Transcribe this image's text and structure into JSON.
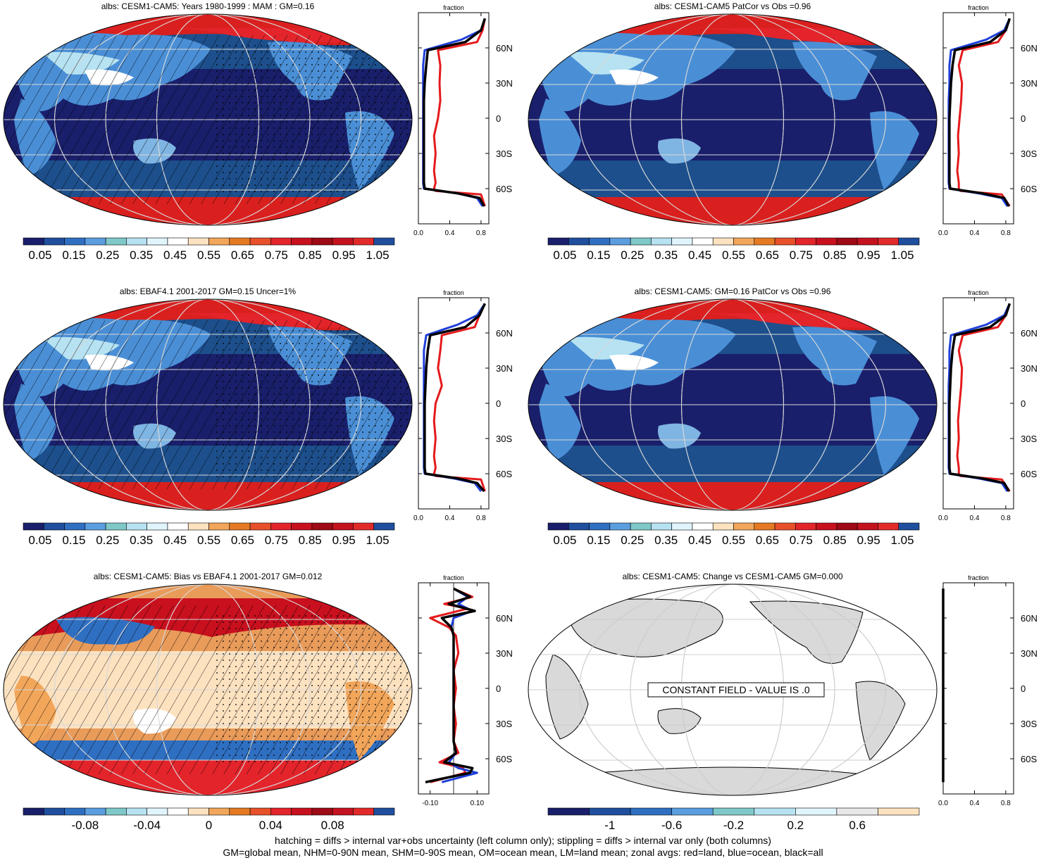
{
  "variable": "albs",
  "panels": [
    {
      "title": "albs: CESM1-CAM5: Years 1980-1999 : MAM : GM=0.16",
      "map_kind": "albedo",
      "colorbar_labels": [
        "0.05",
        "0.15",
        "0.25",
        "0.35",
        "0.45",
        "0.55",
        "0.65",
        "0.75",
        "0.85",
        "0.95",
        "1.05"
      ],
      "zonal_xlabel": "fraction",
      "zonal_xticks": [
        "0.0",
        "0.4",
        "0.8"
      ],
      "zonal_yticks": [
        "60N",
        "30N",
        "0",
        "30S",
        "60S"
      ],
      "hatching": true,
      "stippling": true
    },
    {
      "title": "albs: CESM1-CAM5 PatCor vs Obs =0.96",
      "map_kind": "albedo",
      "colorbar_labels": [
        "0.05",
        "0.15",
        "0.25",
        "0.35",
        "0.45",
        "0.55",
        "0.65",
        "0.75",
        "0.85",
        "0.95",
        "1.05"
      ],
      "zonal_xlabel": "fraction",
      "zonal_xticks": [
        "0.0",
        "0.4",
        "0.8"
      ],
      "zonal_yticks": [
        "60N",
        "30N",
        "0",
        "30S",
        "60S"
      ],
      "hatching": false,
      "stippling": false
    },
    {
      "title": "albs: EBAF4.1 2001-2017 GM=0.15 Uncer=1%",
      "map_kind": "albedo",
      "colorbar_labels": [
        "0.05",
        "0.15",
        "0.25",
        "0.35",
        "0.45",
        "0.55",
        "0.65",
        "0.75",
        "0.85",
        "0.95",
        "1.05"
      ],
      "zonal_xlabel": "fraction",
      "zonal_xticks": [
        "0.0",
        "0.4",
        "0.8"
      ],
      "zonal_yticks": [
        "60N",
        "30N",
        "0",
        "30S",
        "60S"
      ],
      "hatching": true,
      "stippling": true
    },
    {
      "title": "albs: CESM1-CAM5: GM=0.16 PatCor vs Obs =0.96",
      "map_kind": "albedo",
      "colorbar_labels": [
        "0.05",
        "0.15",
        "0.25",
        "0.35",
        "0.45",
        "0.55",
        "0.65",
        "0.75",
        "0.85",
        "0.95",
        "1.05"
      ],
      "zonal_xlabel": "fraction",
      "zonal_xticks": [
        "0.0",
        "0.4",
        "0.8"
      ],
      "zonal_yticks": [
        "60N",
        "30N",
        "0",
        "30S",
        "60S"
      ],
      "hatching": false,
      "stippling": false
    },
    {
      "title": "albs: CESM1-CAM5: Bias vs EBAF4.1 2001-2017 GM=0.012",
      "map_kind": "bias",
      "colorbar_labels": [
        "-0.08",
        "-0.04",
        "0",
        "0.04",
        "0.08"
      ],
      "zonal_xlabel": "fraction",
      "zonal_xticks": [
        "-0.10",
        "0.10"
      ],
      "zonal_yticks": [
        "60N",
        "30N",
        "0",
        "30S",
        "60S"
      ],
      "hatching": true,
      "stippling": true
    },
    {
      "title": "albs: CESM1-CAM5: Change vs CESM1-CAM5 GM=0.000",
      "map_kind": "constant",
      "annotation": "CONSTANT FIELD - VALUE IS .0",
      "colorbar_labels": [
        "-1",
        "-0.6",
        "-0.2",
        "0.2",
        "0.6"
      ],
      "zonal_xlabel": "fraction",
      "zonal_xticks": [
        "0.0",
        "0.4",
        "0.8"
      ],
      "zonal_yticks": [
        "60N",
        "30N",
        "0",
        "30S",
        "60S"
      ],
      "hatching": false,
      "stippling": false
    }
  ],
  "colorbars": {
    "albedo": [
      "#1a1f6b",
      "#1f4f9e",
      "#2f6fc2",
      "#5b9ee0",
      "#7ec8c8",
      "#b6e2f2",
      "#e0f4fb",
      "#ffffff",
      "#fde2c0",
      "#f2a65a",
      "#e57a22",
      "#e8502a",
      "#e3242b",
      "#c8101e",
      "#9e0a15",
      "#c4121f",
      "#e32a2a",
      "#1f4f9e"
    ],
    "bias": [
      "#1a1f6b",
      "#1f4f9e",
      "#2f6fc2",
      "#5b9ee0",
      "#7ec8c8",
      "#b6e2f2",
      "#e0f4fb",
      "#ffffff",
      "#fde2c0",
      "#f2a65a",
      "#e57a22",
      "#e8502a",
      "#e3242b",
      "#c8101e",
      "#9e0a15",
      "#c4121f",
      "#e32a2a",
      "#1f4f9e"
    ],
    "constant": [
      "#1a1f6b",
      "#1f4f9e",
      "#2f6fc2",
      "#5b9ee0",
      "#7ec8c8",
      "#b6e2f2",
      "#e0f4fb",
      "#e8e8e8",
      "#fde2c0"
    ]
  },
  "colors": {
    "land_line": "#e41a1c",
    "ocean_line": "#1f3fd9",
    "all_line": "#000000",
    "constant_land": "#d9d9d9"
  },
  "footnotes": [
    "hatching = diffs > internal var+obs uncertainty (left column only); stippling = diffs > internal var only (both columns)",
    "GM=global mean, NHM=0-90N mean, SHM=0-90S mean, OM=ocean mean, LM=land mean; zonal avgs: red=land, blue=ocean, black=all"
  ],
  "chart_data": [
    {
      "type": "line",
      "title": "albs: CESM1-CAM5: Years 1980-1999 : MAM : GM=0.16",
      "xlabel": "fraction",
      "xlim": [
        0,
        0.9
      ],
      "ylim": [
        -90,
        90
      ],
      "series": [
        {
          "name": "land",
          "x": [
            0.85,
            0.82,
            0.75,
            0.25,
            0.28,
            0.27,
            0.28,
            0.25,
            0.2,
            0.22,
            0.2,
            0.22,
            0.2,
            0.22,
            0.8,
            0.85
          ],
          "y": [
            85,
            75,
            65,
            58,
            45,
            30,
            15,
            0,
            -15,
            -30,
            -45,
            -55,
            -60,
            -62,
            -65,
            -75
          ]
        },
        {
          "name": "ocean",
          "x": [
            0.85,
            0.8,
            0.55,
            0.08,
            0.06,
            0.06,
            0.06,
            0.06,
            0.06,
            0.06,
            0.06,
            0.06,
            0.07,
            0.5,
            0.75,
            0.82
          ],
          "y": [
            85,
            75,
            67,
            58,
            45,
            30,
            15,
            0,
            -15,
            -30,
            -45,
            -55,
            -60,
            -64,
            -68,
            -75
          ]
        },
        {
          "name": "all",
          "x": [
            0.85,
            0.8,
            0.6,
            0.12,
            0.1,
            0.08,
            0.07,
            0.07,
            0.07,
            0.07,
            0.07,
            0.07,
            0.08,
            0.5,
            0.78,
            0.84
          ],
          "y": [
            85,
            75,
            65,
            58,
            45,
            30,
            15,
            0,
            -15,
            -30,
            -45,
            -55,
            -60,
            -64,
            -68,
            -75
          ]
        }
      ]
    },
    {
      "type": "line",
      "title": "albs: CESM1-CAM5 PatCor vs Obs =0.96",
      "xlabel": "fraction",
      "xlim": [
        0,
        0.9
      ],
      "ylim": [
        -90,
        90
      ],
      "series": [
        {
          "name": "land",
          "x": [
            0.85,
            0.8,
            0.7,
            0.25,
            0.2,
            0.24,
            0.23,
            0.21,
            0.19,
            0.2,
            0.18,
            0.2,
            0.2,
            0.22,
            0.75,
            0.85
          ],
          "y": [
            85,
            75,
            65,
            58,
            45,
            30,
            15,
            0,
            -15,
            -30,
            -45,
            -55,
            -60,
            -62,
            -65,
            -75
          ]
        },
        {
          "name": "ocean",
          "x": [
            0.85,
            0.78,
            0.55,
            0.1,
            0.08,
            0.08,
            0.07,
            0.07,
            0.07,
            0.07,
            0.07,
            0.07,
            0.08,
            0.45,
            0.75,
            0.82
          ],
          "y": [
            85,
            75,
            67,
            58,
            45,
            30,
            15,
            0,
            -15,
            -30,
            -45,
            -55,
            -60,
            -64,
            -68,
            -75
          ]
        },
        {
          "name": "all",
          "x": [
            0.85,
            0.8,
            0.6,
            0.15,
            0.12,
            0.1,
            0.09,
            0.08,
            0.08,
            0.08,
            0.08,
            0.08,
            0.09,
            0.5,
            0.78,
            0.84
          ],
          "y": [
            85,
            75,
            65,
            58,
            45,
            30,
            15,
            0,
            -15,
            -30,
            -45,
            -55,
            -60,
            -64,
            -68,
            -75
          ]
        }
      ]
    },
    {
      "type": "line",
      "title": "albs: EBAF4.1 2001-2017 GM=0.15 Uncer=1%",
      "xlabel": "fraction",
      "xlim": [
        0,
        0.9
      ],
      "ylim": [
        -90,
        90
      ],
      "series": [
        {
          "name": "land",
          "x": [
            0.85,
            0.78,
            0.72,
            0.3,
            0.28,
            0.25,
            0.3,
            0.22,
            0.2,
            0.22,
            0.2,
            0.22,
            0.2,
            0.22,
            0.8,
            0.85
          ],
          "y": [
            85,
            75,
            65,
            58,
            45,
            30,
            15,
            0,
            -15,
            -30,
            -45,
            -55,
            -60,
            -62,
            -65,
            -75
          ]
        },
        {
          "name": "ocean",
          "x": [
            0.85,
            0.75,
            0.5,
            0.1,
            0.07,
            0.07,
            0.07,
            0.07,
            0.07,
            0.07,
            0.07,
            0.07,
            0.08,
            0.45,
            0.72,
            0.8
          ],
          "y": [
            85,
            75,
            67,
            58,
            45,
            30,
            15,
            0,
            -15,
            -30,
            -45,
            -55,
            -60,
            -64,
            -68,
            -75
          ]
        },
        {
          "name": "all",
          "x": [
            0.85,
            0.78,
            0.6,
            0.15,
            0.12,
            0.1,
            0.09,
            0.08,
            0.08,
            0.08,
            0.08,
            0.08,
            0.09,
            0.5,
            0.75,
            0.84
          ],
          "y": [
            85,
            75,
            65,
            58,
            45,
            30,
            15,
            0,
            -15,
            -30,
            -45,
            -55,
            -60,
            -64,
            -68,
            -75
          ]
        }
      ]
    },
    {
      "type": "line",
      "title": "albs: CESM1-CAM5: GM=0.16 PatCor vs Obs =0.96",
      "xlabel": "fraction",
      "xlim": [
        0,
        0.9
      ],
      "ylim": [
        -90,
        90
      ],
      "series": [
        {
          "name": "land",
          "x": [
            0.85,
            0.8,
            0.7,
            0.25,
            0.2,
            0.24,
            0.23,
            0.21,
            0.19,
            0.2,
            0.18,
            0.2,
            0.2,
            0.22,
            0.75,
            0.85
          ],
          "y": [
            85,
            75,
            65,
            58,
            45,
            30,
            15,
            0,
            -15,
            -30,
            -45,
            -55,
            -60,
            -62,
            -65,
            -75
          ]
        },
        {
          "name": "ocean",
          "x": [
            0.85,
            0.78,
            0.55,
            0.1,
            0.08,
            0.08,
            0.07,
            0.07,
            0.07,
            0.07,
            0.07,
            0.07,
            0.08,
            0.45,
            0.75,
            0.82
          ],
          "y": [
            85,
            75,
            67,
            58,
            45,
            30,
            15,
            0,
            -15,
            -30,
            -45,
            -55,
            -60,
            -64,
            -68,
            -75
          ]
        },
        {
          "name": "all",
          "x": [
            0.85,
            0.8,
            0.6,
            0.15,
            0.12,
            0.1,
            0.09,
            0.08,
            0.08,
            0.08,
            0.08,
            0.08,
            0.09,
            0.5,
            0.78,
            0.84
          ],
          "y": [
            85,
            75,
            65,
            58,
            45,
            30,
            15,
            0,
            -15,
            -30,
            -45,
            -55,
            -60,
            -64,
            -68,
            -75
          ]
        }
      ]
    },
    {
      "type": "line",
      "title": "albs: CESM1-CAM5: Bias vs EBAF4.1 2001-2017 GM=0.012",
      "xlabel": "fraction",
      "xlim": [
        -0.15,
        0.15
      ],
      "ylim": [
        -90,
        90
      ],
      "series": [
        {
          "name": "land",
          "x": [
            0.0,
            0.08,
            -0.04,
            0.06,
            -0.1,
            -0.02,
            0.01,
            0.02,
            0.0,
            0.01,
            0.0,
            0.01,
            0.0,
            0.02,
            -0.06,
            0.04,
            0.05,
            -0.1
          ],
          "y": [
            85,
            78,
            72,
            68,
            60,
            52,
            45,
            30,
            15,
            0,
            -15,
            -30,
            -45,
            -55,
            -63,
            -68,
            -72,
            -80
          ]
        },
        {
          "name": "ocean",
          "x": [
            0.0,
            0.06,
            0.02,
            0.08,
            0.0,
            -0.01,
            0.0,
            0.0,
            0.0,
            0.0,
            0.0,
            0.0,
            0.0,
            0.01,
            -0.02,
            0.02,
            0.1,
            -0.05
          ],
          "y": [
            85,
            78,
            72,
            66,
            60,
            52,
            45,
            30,
            15,
            0,
            -15,
            -30,
            -45,
            -55,
            -63,
            -68,
            -72,
            -80
          ]
        },
        {
          "name": "all",
          "x": [
            0.0,
            0.07,
            -0.02,
            0.09,
            -0.05,
            -0.01,
            0.0,
            0.0,
            0.0,
            0.0,
            0.0,
            0.0,
            0.0,
            0.01,
            -0.04,
            0.08,
            0.07,
            -0.12
          ],
          "y": [
            85,
            78,
            72,
            66,
            60,
            52,
            45,
            30,
            15,
            0,
            -15,
            -30,
            -45,
            -55,
            -63,
            -68,
            -72,
            -80
          ]
        }
      ]
    },
    {
      "type": "line",
      "title": "albs: CESM1-CAM5: Change vs CESM1-CAM5 GM=0.000",
      "xlabel": "fraction",
      "xlim": [
        0,
        0.9
      ],
      "ylim": [
        -90,
        90
      ],
      "series": [
        {
          "name": "land",
          "x": [
            0,
            0
          ],
          "y": [
            85,
            -80
          ]
        },
        {
          "name": "ocean",
          "x": [
            0,
            0
          ],
          "y": [
            85,
            -80
          ]
        },
        {
          "name": "all",
          "x": [
            0,
            0
          ],
          "y": [
            85,
            -80
          ]
        }
      ]
    }
  ]
}
